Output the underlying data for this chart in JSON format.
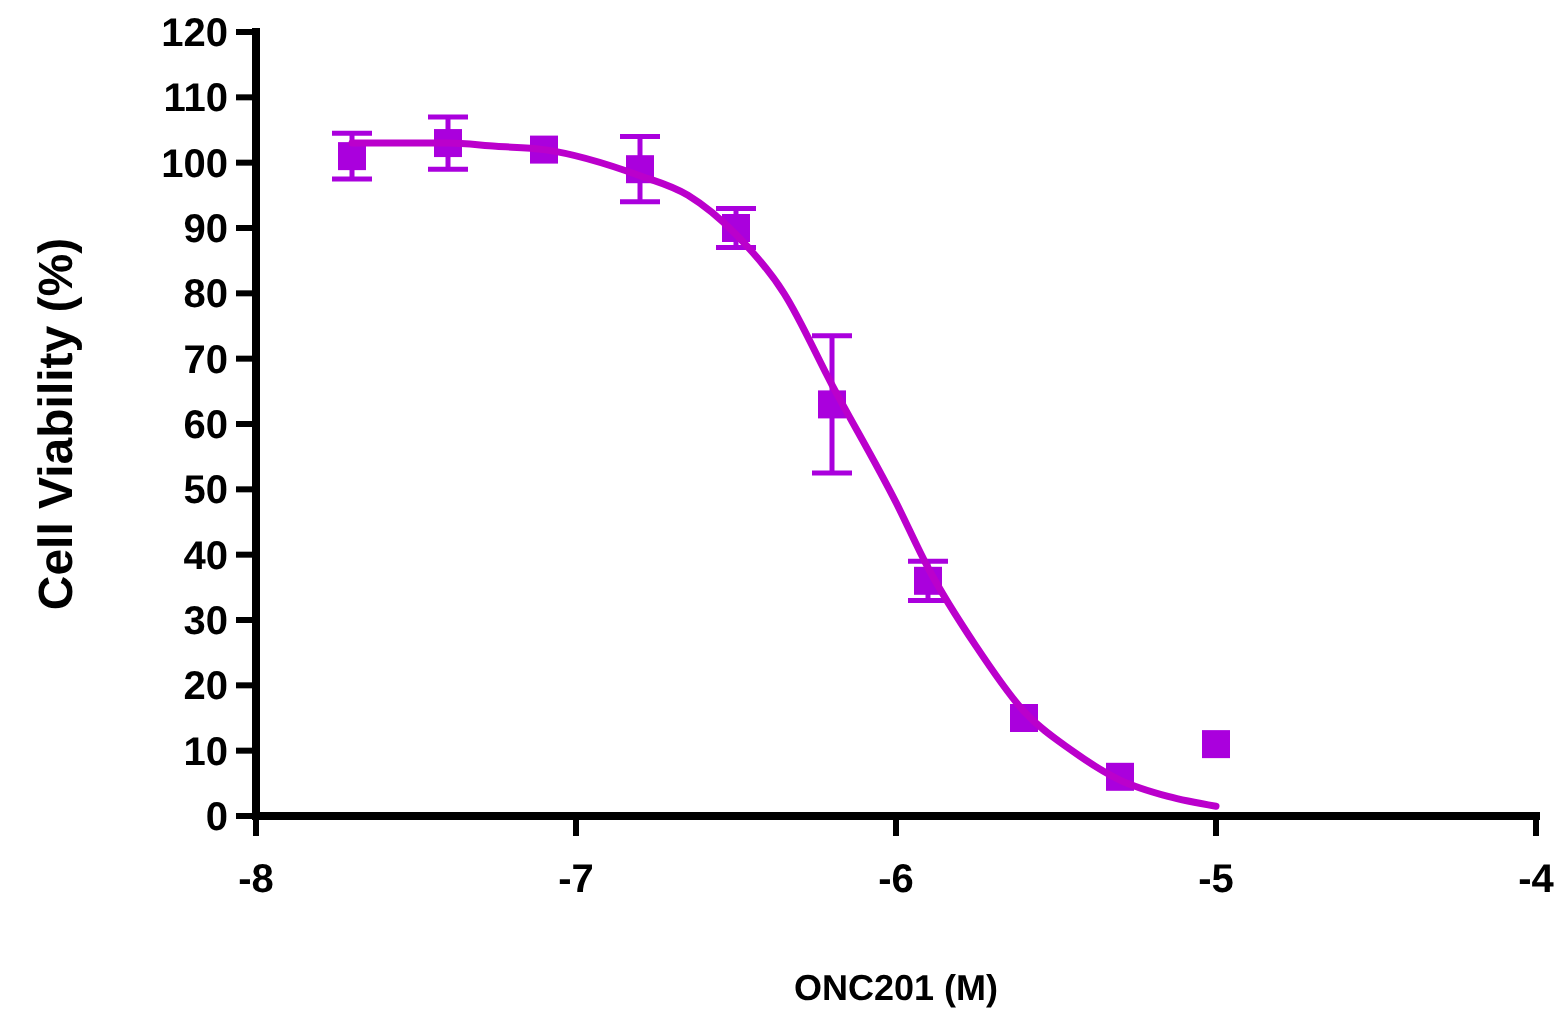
{
  "chart_data": {
    "type": "scatter",
    "xlabel": "ONC201 (M)",
    "ylabel": "Cell Viability (%)",
    "xlim": [
      -8,
      -4
    ],
    "xticks": [
      -8,
      -7,
      -6,
      -5,
      -4
    ],
    "ylim": [
      0,
      120
    ],
    "yticks": [
      0,
      10,
      20,
      30,
      40,
      50,
      60,
      70,
      80,
      90,
      100,
      110,
      120
    ],
    "grid": false,
    "marker": "square",
    "series": [
      {
        "color": "#aa00dd",
        "x": [
          -7.7,
          -7.4,
          -7.1,
          -6.8,
          -6.5,
          -6.2,
          -5.9,
          -5.6,
          -5.3,
          -5.0
        ],
        "values": [
          101,
          103,
          102,
          99,
          90,
          63,
          36,
          15,
          6,
          11
        ],
        "errors": [
          3.5,
          4,
          null,
          5,
          3,
          10.5,
          3,
          null,
          null,
          null
        ]
      },
      {
        "type": "line",
        "color": "#bb00cc",
        "line_style": "solid",
        "marker": "none",
        "x": [
          -7.7,
          -7.4,
          -7.25,
          -7.1,
          -6.8,
          -6.65,
          -6.5,
          -6.35,
          -6.2,
          -6.0,
          -5.9,
          -5.75,
          -5.6,
          -5.45,
          -5.3,
          -5.15,
          -5.0
        ],
        "values": [
          103,
          103,
          102.5,
          102,
          98,
          95,
          89,
          80,
          66,
          48,
          38,
          26,
          16,
          10,
          5.5,
          3,
          1.5
        ]
      }
    ]
  }
}
